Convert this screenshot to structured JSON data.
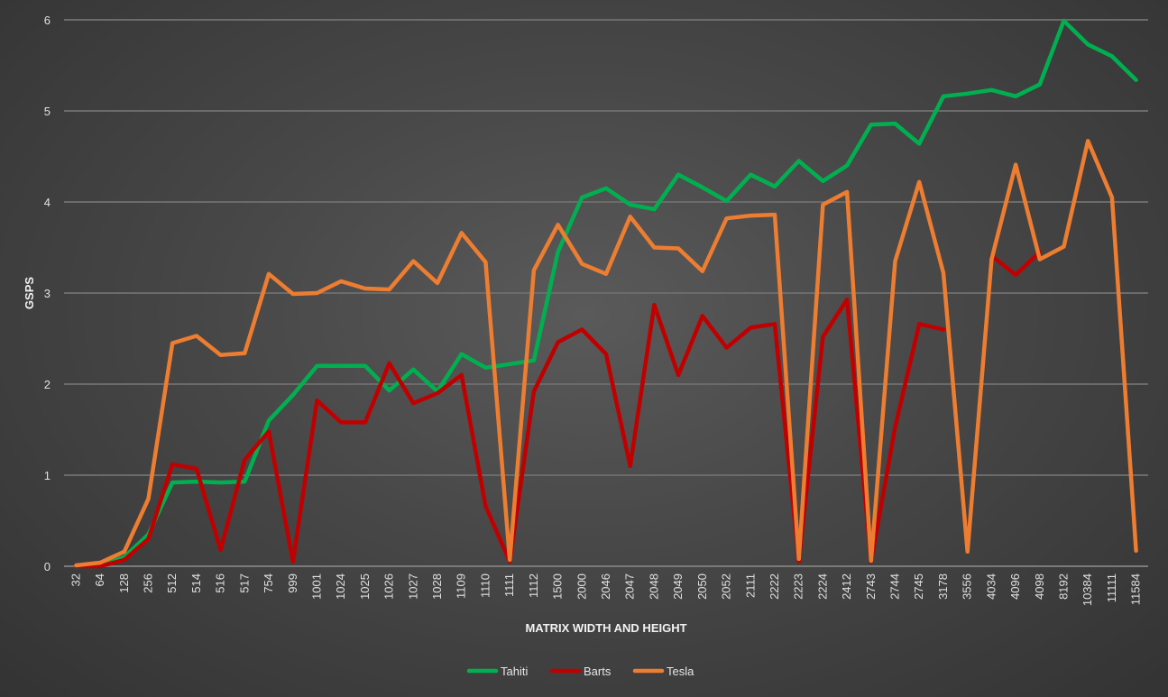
{
  "chart_data": {
    "type": "line",
    "title": "",
    "xlabel": "MATRIX WIDTH AND HEIGHT",
    "ylabel": "GSPS",
    "ylim": [
      0,
      6
    ],
    "yticks": [
      0,
      1,
      2,
      3,
      4,
      5,
      6
    ],
    "grid": true,
    "legend_position": "bottom",
    "categories": [
      "32",
      "64",
      "128",
      "256",
      "512",
      "514",
      "516",
      "517",
      "754",
      "999",
      "1001",
      "1024",
      "1025",
      "1026",
      "1027",
      "1028",
      "1109",
      "1110",
      "1111",
      "1112",
      "1500",
      "2000",
      "2046",
      "2047",
      "2048",
      "2049",
      "2050",
      "2052",
      "2111",
      "2222",
      "2223",
      "2224",
      "2412",
      "2743",
      "2744",
      "2745",
      "3178",
      "3556",
      "4034",
      "4096",
      "4098",
      "8192",
      "10384",
      "11111",
      "11584"
    ],
    "series": [
      {
        "name": "Tahiti",
        "color": "#00b050",
        "values": [
          0.0,
          0.01,
          0.1,
          0.35,
          0.92,
          0.93,
          0.92,
          0.93,
          1.6,
          1.88,
          2.2,
          2.2,
          2.2,
          1.93,
          2.16,
          1.92,
          2.33,
          2.18,
          2.22,
          2.26,
          3.45,
          4.05,
          4.15,
          3.97,
          3.92,
          4.3,
          4.16,
          4.01,
          4.3,
          4.17,
          4.45,
          4.23,
          4.4,
          4.85,
          4.86,
          4.64,
          5.16,
          5.19,
          5.23,
          5.16,
          5.29,
          5.99,
          5.73,
          5.6,
          5.34
        ]
      },
      {
        "name": "Barts",
        "color": "#c00000",
        "values": [
          0.0,
          0.0,
          0.07,
          0.3,
          1.12,
          1.07,
          0.18,
          1.17,
          1.48,
          0.05,
          1.82,
          1.58,
          1.58,
          2.23,
          1.79,
          1.9,
          2.1,
          0.66,
          0.05,
          1.92,
          2.46,
          2.6,
          2.33,
          1.1,
          2.87,
          2.1,
          2.75,
          2.4,
          2.62,
          2.66,
          0.05,
          2.52,
          2.93,
          0.05,
          1.53,
          2.66,
          2.6,
          null,
          3.41,
          3.2,
          3.45,
          null,
          null,
          null,
          null
        ]
      },
      {
        "name": "Tesla",
        "color": "#ed7d31",
        "values": [
          0.01,
          0.04,
          0.16,
          0.74,
          2.45,
          2.53,
          2.32,
          2.34,
          3.21,
          2.99,
          3.0,
          3.13,
          3.05,
          3.04,
          3.35,
          3.11,
          3.66,
          3.34,
          0.07,
          3.25,
          3.75,
          3.32,
          3.21,
          3.84,
          3.5,
          3.49,
          3.24,
          3.82,
          3.85,
          3.86,
          0.08,
          3.97,
          4.11,
          0.06,
          3.35,
          4.22,
          3.22,
          0.16,
          3.37,
          4.41,
          3.37,
          3.51,
          4.67,
          4.05,
          0.17
        ]
      }
    ]
  }
}
